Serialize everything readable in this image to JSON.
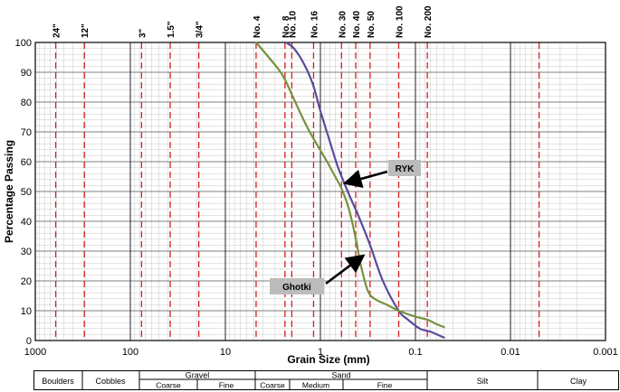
{
  "chart_data": {
    "type": "line",
    "xlabel": "Grain Size (mm)",
    "ylabel": "Percentage Passing",
    "x_scale": "log",
    "x_reversed": true,
    "xlim": [
      1000,
      0.001
    ],
    "ylim": [
      0,
      100
    ],
    "grid": true,
    "x_ticks": [
      {
        "value": 1000,
        "label": "1000"
      },
      {
        "value": 100,
        "label": "100"
      },
      {
        "value": 10,
        "label": "10"
      },
      {
        "value": 1,
        "label": "1"
      },
      {
        "value": 0.1,
        "label": "0.1"
      },
      {
        "value": 0.01,
        "label": "0.01"
      },
      {
        "value": 0.001,
        "label": "0.001"
      }
    ],
    "y_ticks": [
      0,
      10,
      20,
      30,
      40,
      50,
      60,
      70,
      80,
      90,
      100
    ],
    "sieves": [
      {
        "label": "24\"",
        "size": 609.6
      },
      {
        "label": "12\"",
        "size": 304.8
      },
      {
        "label": "3\"",
        "size": 76.2
      },
      {
        "label": "1.5\"",
        "size": 38.1
      },
      {
        "label": "3/4\"",
        "size": 19.05
      },
      {
        "label": "No. 4",
        "size": 4.75
      },
      {
        "label": "No. 8",
        "size": 2.36
      },
      {
        "label": "No. 10",
        "size": 2.0
      },
      {
        "label": "No. 16",
        "size": 1.18
      },
      {
        "label": "No. 30",
        "size": 0.6
      },
      {
        "label": "No. 40",
        "size": 0.425
      },
      {
        "label": "No. 50",
        "size": 0.3
      },
      {
        "label": "No. 100",
        "size": 0.15
      },
      {
        "label": "No. 200",
        "size": 0.075
      },
      {
        "label": "",
        "size": 0.005
      }
    ],
    "series": [
      {
        "name": "RYK",
        "color": "#5a4a9c",
        "x": [
          2.3,
          1.9,
          1.5,
          1.2,
          1.0,
          0.8,
          0.65,
          0.5,
          0.4,
          0.3,
          0.22,
          0.15,
          0.12,
          0.09,
          0.07,
          0.05
        ],
        "y": [
          100,
          98,
          93,
          86,
          77,
          67,
          58,
          49,
          42,
          32,
          20,
          10,
          7,
          4,
          3,
          1
        ]
      },
      {
        "name": "Ghotki",
        "color": "#76923c",
        "x": [
          4.75,
          3.5,
          2.5,
          1.9,
          1.4,
          1.1,
          0.85,
          0.7,
          0.6,
          0.5,
          0.43,
          0.38,
          0.32,
          0.27,
          0.2,
          0.15,
          0.1,
          0.075,
          0.06,
          0.05
        ],
        "y": [
          100,
          95,
          89,
          81,
          72,
          66,
          60,
          55,
          51,
          44,
          35,
          26,
          17,
          14,
          12,
          10,
          8,
          7,
          5.5,
          4.5
        ]
      }
    ],
    "annotations": [
      {
        "text": "RYK",
        "points_to": {
          "x": 0.52,
          "y": 53
        }
      },
      {
        "text": "Ghotki",
        "points_to": {
          "x": 0.37,
          "y": 28
        }
      }
    ]
  },
  "classification": {
    "boulders": "Boulders",
    "cobbles": "Cobbles",
    "gravel": "Gravel",
    "gravel_coarse": "Coarse",
    "gravel_fine": "Fine",
    "sand": "Sand",
    "sand_coarse": "Coarse",
    "sand_medium": "Medium",
    "sand_fine": "Fine",
    "silt": "Silt",
    "clay": "Clay"
  }
}
